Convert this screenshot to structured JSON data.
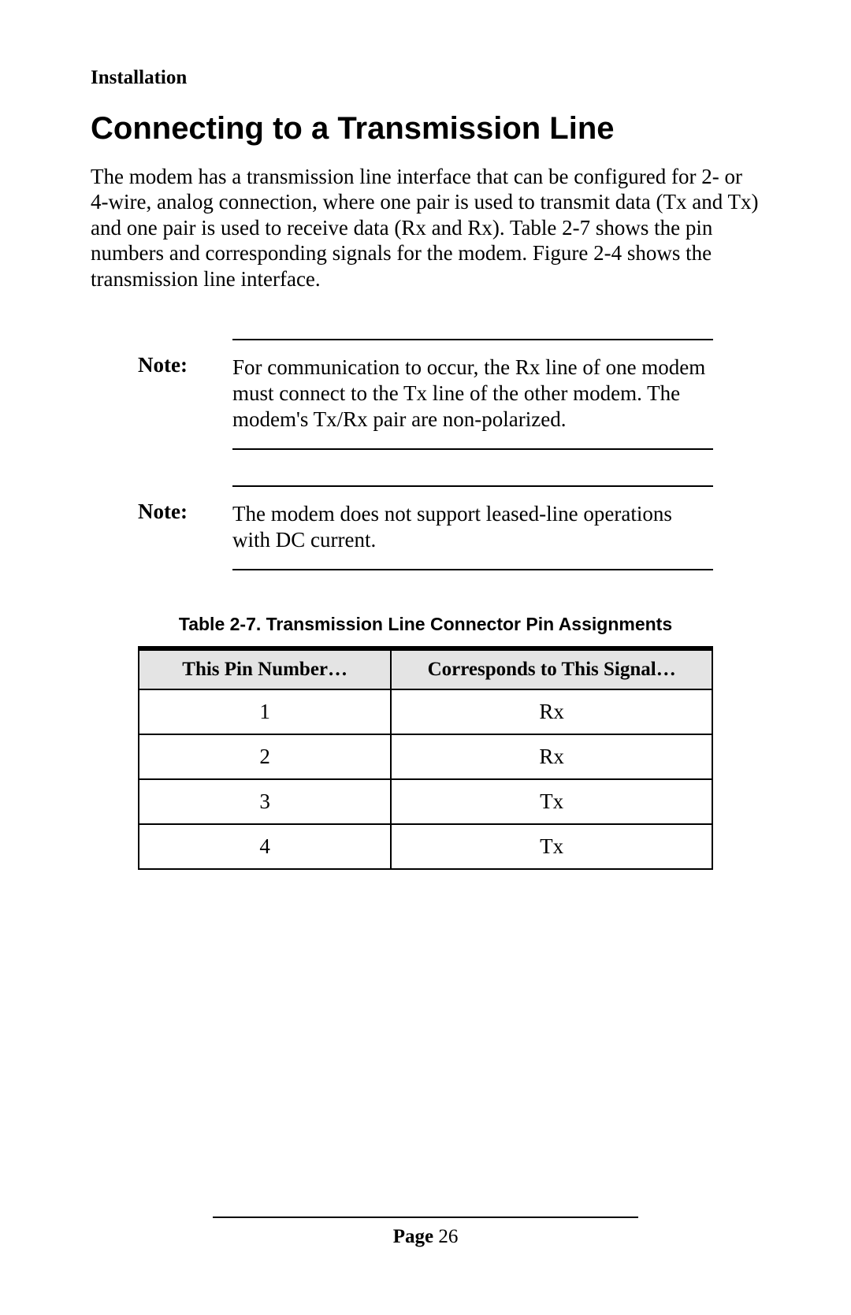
{
  "section_label": "Installation",
  "heading": "Connecting to a Transmission Line",
  "intro_paragraph": "The modem has a transmission line interface that can be configured for 2- or 4-wire, analog connection, where one pair is used to transmit data (Tx and Tx) and one pair is used to receive data (Rx and Rx). Table 2-7 shows the pin numbers and corresponding signals for the modem. Figure 2-4 shows the transmission line interface.",
  "notes": [
    {
      "label": "Note:",
      "text": "For communication to occur, the Rx line of one modem must connect to the Tx line of the other modem. The modem's Tx/Rx pair are non-polarized."
    },
    {
      "label": "Note:",
      "text": "The modem does not support leased-line operations with DC current."
    }
  ],
  "table": {
    "caption": "Table 2-7. Transmission Line Connector Pin Assignments",
    "columns": [
      "This Pin Number…",
      "Corresponds to This Signal…"
    ],
    "rows": [
      [
        "1",
        "Rx"
      ],
      [
        "2",
        "Rx"
      ],
      [
        "3",
        "Tx"
      ],
      [
        "4",
        "Tx"
      ]
    ],
    "header_bg": "#e4e4e4",
    "border_color": "#000000",
    "col_widths_pct": [
      44,
      56
    ],
    "header_fontsize": 25,
    "cell_fontsize": 27
  },
  "footer": {
    "label": "Page",
    "number": "26"
  },
  "typography": {
    "body_font": "Times New Roman",
    "heading_font": "Arial",
    "body_fontsize": 27,
    "heading_fontsize": 40,
    "section_label_fontsize": 25
  },
  "colors": {
    "background": "#ffffff",
    "text": "#000000"
  }
}
